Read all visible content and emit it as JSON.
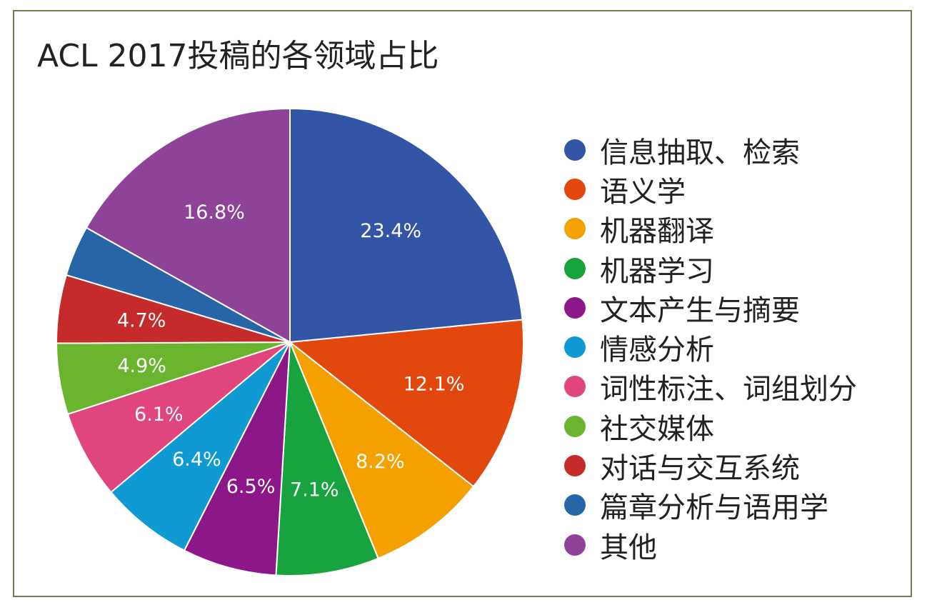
{
  "chart_data": {
    "type": "pie",
    "title": "ACL 2017投稿的各领域占比",
    "legend_position": "right",
    "slices": [
      {
        "label": "信息抽取、检索",
        "value": 23.4,
        "value_label": "23.4%",
        "color": "#3355a6"
      },
      {
        "label": "语义学",
        "value": 12.1,
        "value_label": "12.1%",
        "color": "#e2470e"
      },
      {
        "label": "机器翻译",
        "value": 8.2,
        "value_label": "8.2%",
        "color": "#f4a100"
      },
      {
        "label": "机器学习",
        "value": 7.1,
        "value_label": "7.1%",
        "color": "#17a33e"
      },
      {
        "label": "文本产生与摘要",
        "value": 6.5,
        "value_label": "6.5%",
        "color": "#8c1788"
      },
      {
        "label": "情感分析",
        "value": 6.4,
        "value_label": "6.4%",
        "color": "#0f9ad3"
      },
      {
        "label": "词性标注、词组划分",
        "value": 6.1,
        "value_label": "6.1%",
        "color": "#e0457e"
      },
      {
        "label": "社交媒体",
        "value": 4.9,
        "value_label": "4.9%",
        "color": "#6bb42d"
      },
      {
        "label": "对话与交互系统",
        "value": 4.7,
        "value_label": "4.7%",
        "color": "#c62b2b"
      },
      {
        "label": "篇章分析与语用学",
        "value": 3.5,
        "value_label": "",
        "color": "#2865a6"
      },
      {
        "label": "其他",
        "value": 16.8,
        "value_label": "16.8%",
        "color": "#8e4399"
      }
    ]
  }
}
